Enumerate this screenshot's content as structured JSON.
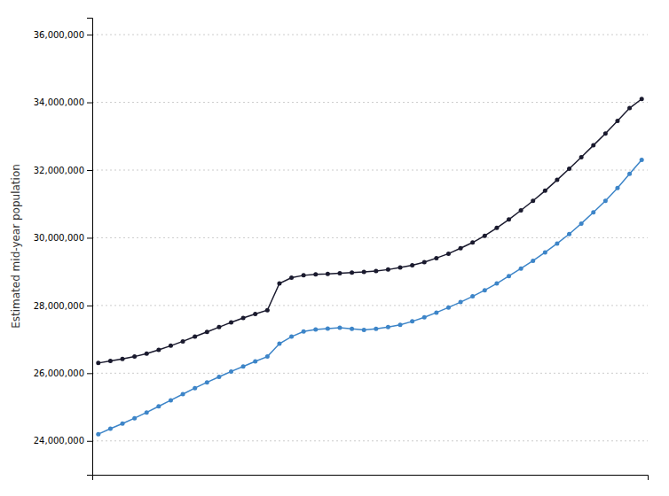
{
  "chart_data": {
    "type": "line",
    "y_label": "Estimated mid-year population",
    "categories": [
      null,
      null,
      null,
      null,
      null,
      null,
      null,
      null,
      null,
      null,
      null,
      null,
      null,
      null,
      null,
      null,
      null,
      null,
      null,
      null,
      null,
      null,
      null,
      null,
      null,
      null,
      null,
      null,
      null,
      null,
      null,
      null,
      null,
      null,
      null,
      null,
      null,
      null,
      null,
      null,
      null,
      null,
      null,
      null,
      null,
      null
    ],
    "series": [
      {
        "color": "#1a1a2e",
        "values": [
          26300000,
          26360000,
          26420000,
          26490000,
          26580000,
          26690000,
          26810000,
          26940000,
          27080000,
          27220000,
          27360000,
          27500000,
          27630000,
          27750000,
          27860000,
          28650000,
          28820000,
          28890000,
          28920000,
          28930000,
          28950000,
          28970000,
          28990000,
          29020000,
          29060000,
          29120000,
          29190000,
          29280000,
          29400000,
          29530000,
          29690000,
          29860000,
          30060000,
          30290000,
          30540000,
          30810000,
          31090000,
          31390000,
          31710000,
          32040000,
          32380000,
          32730000,
          33080000,
          33450000,
          33830000,
          34100000
        ]
      },
      {
        "color": "#3d85c8",
        "values": [
          24200000,
          24360000,
          24510000,
          24670000,
          24840000,
          25020000,
          25200000,
          25380000,
          25560000,
          25730000,
          25890000,
          26050000,
          26200000,
          26350000,
          26490000,
          26870000,
          27080000,
          27230000,
          27290000,
          27320000,
          27340000,
          27310000,
          27280000,
          27310000,
          27360000,
          27430000,
          27530000,
          27650000,
          27790000,
          27940000,
          28100000,
          28270000,
          28450000,
          28650000,
          28870000,
          29090000,
          29320000,
          29570000,
          29830000,
          30110000,
          30420000,
          30750000,
          31090000,
          31470000,
          31890000,
          32300000
        ]
      }
    ],
    "ylim": [
      23000000,
      36500000
    ],
    "yticks": [
      {
        "value": 24000000,
        "label": "24,000,000"
      },
      {
        "value": 26000000,
        "label": "26,000,000"
      },
      {
        "value": 28000000,
        "label": "28,000,000"
      },
      {
        "value": 30000000,
        "label": "30,000,000"
      },
      {
        "value": 32000000,
        "label": "32,000,000"
      },
      {
        "value": 34000000,
        "label": "34,000,000"
      },
      {
        "value": 36000000,
        "label": "36,000,000"
      }
    ],
    "grid": true,
    "marker": "circle",
    "tick_labels": "y"
  }
}
